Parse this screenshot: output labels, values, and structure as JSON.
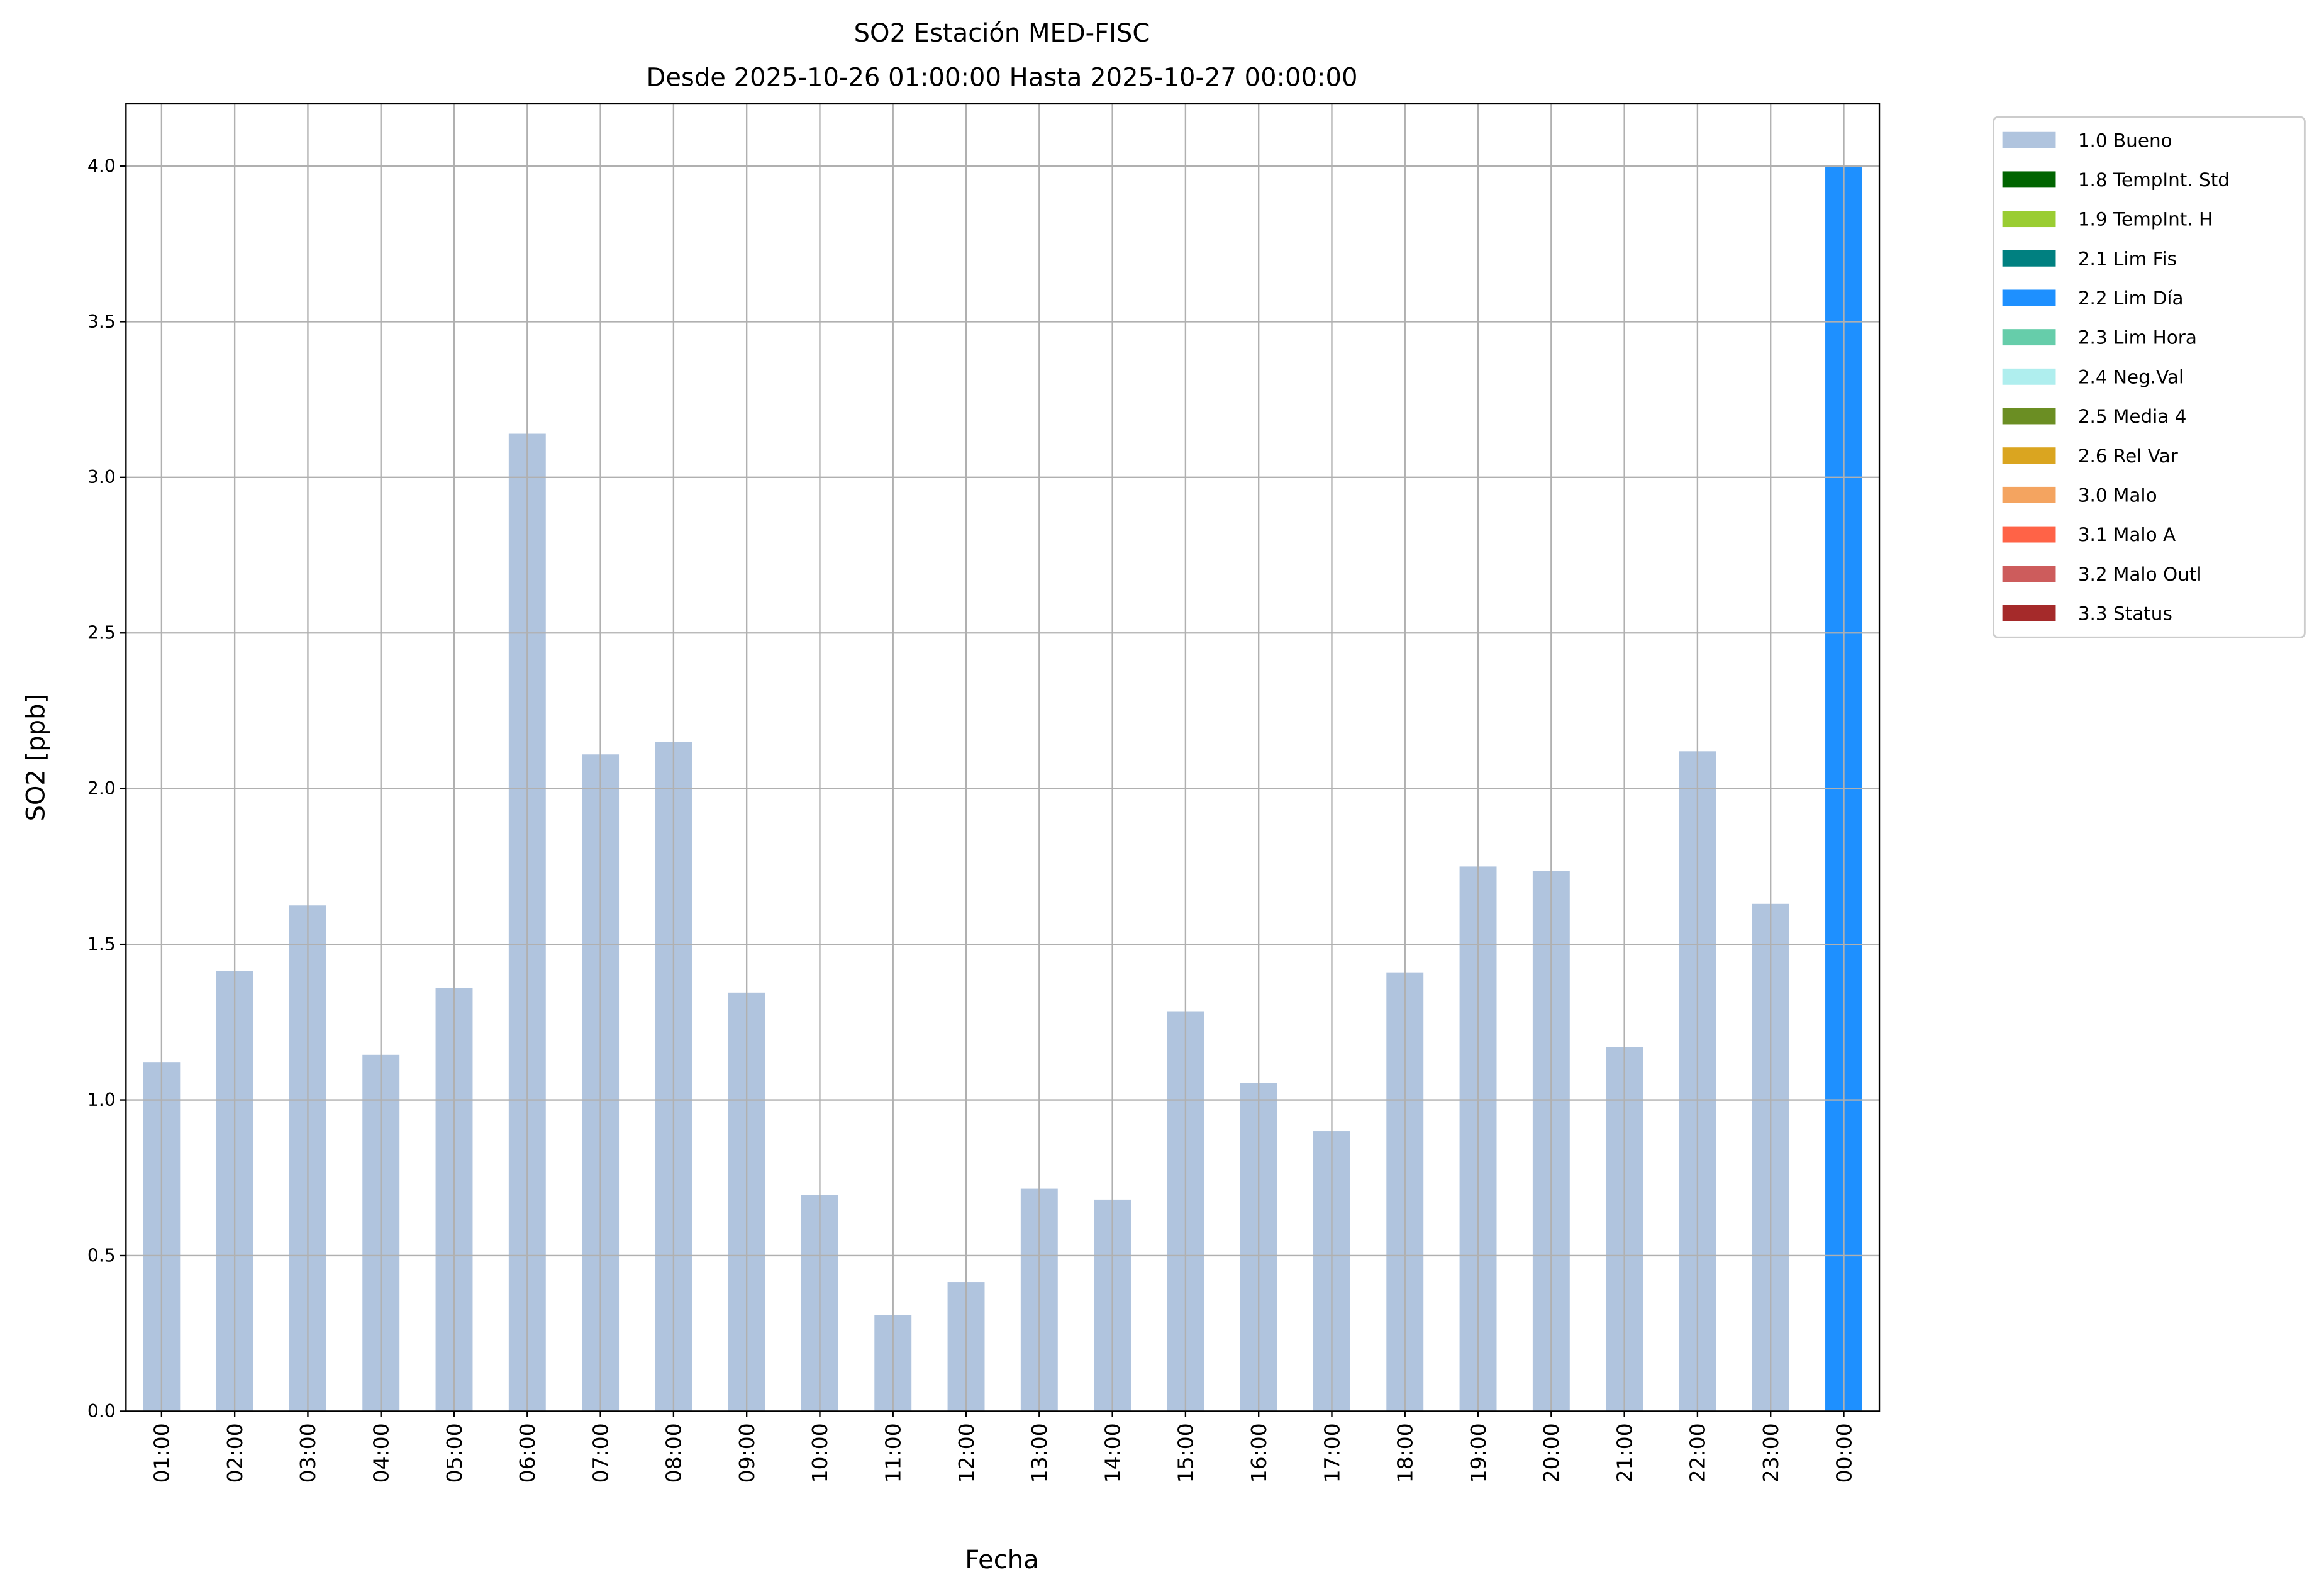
{
  "chart_data": {
    "type": "bar",
    "title": "SO2 Estación MED-FISC",
    "subtitle": "Desde 2025-10-26 01:00:00 Hasta 2025-10-27 00:00:00",
    "xlabel": "Fecha",
    "ylabel": "SO2 [ppb]",
    "ylim": [
      0,
      4.2
    ],
    "yticks": [
      "0.0",
      "0.5",
      "1.0",
      "1.5",
      "2.0",
      "2.5",
      "3.0",
      "3.5",
      "4.0"
    ],
    "grid": true,
    "legend_position": "outside-top-right",
    "categories": [
      "01:00",
      "02:00",
      "03:00",
      "04:00",
      "05:00",
      "06:00",
      "07:00",
      "08:00",
      "09:00",
      "10:00",
      "11:00",
      "12:00",
      "13:00",
      "14:00",
      "15:00",
      "16:00",
      "17:00",
      "18:00",
      "19:00",
      "20:00",
      "21:00",
      "22:00",
      "23:00",
      "00:00"
    ],
    "values": [
      1.12,
      1.415,
      1.625,
      1.145,
      1.36,
      3.14,
      2.11,
      2.15,
      1.345,
      0.695,
      0.31,
      0.415,
      0.715,
      0.68,
      1.285,
      1.055,
      0.9,
      1.41,
      1.75,
      1.735,
      1.17,
      2.12,
      1.63,
      4.0
    ],
    "flags": [
      "1.0 Bueno",
      "1.0 Bueno",
      "1.0 Bueno",
      "1.0 Bueno",
      "1.0 Bueno",
      "1.0 Bueno",
      "1.0 Bueno",
      "1.0 Bueno",
      "1.0 Bueno",
      "1.0 Bueno",
      "1.0 Bueno",
      "1.0 Bueno",
      "1.0 Bueno",
      "1.0 Bueno",
      "1.0 Bueno",
      "1.0 Bueno",
      "1.0 Bueno",
      "1.0 Bueno",
      "1.0 Bueno",
      "1.0 Bueno",
      "1.0 Bueno",
      "1.0 Bueno",
      "1.0 Bueno",
      "2.2 Lim Día"
    ],
    "legend": [
      {
        "name": "1.0 Bueno",
        "color": "#b0c4de"
      },
      {
        "name": "1.8 TempInt. Std",
        "color": "#006400"
      },
      {
        "name": "1.9 TempInt. H",
        "color": "#9acd32"
      },
      {
        "name": "2.1 Lim Fis",
        "color": "#008080"
      },
      {
        "name": "2.2 Lim Día",
        "color": "#1e90ff"
      },
      {
        "name": "2.3 Lim Hora",
        "color": "#66cdaa"
      },
      {
        "name": "2.4 Neg.Val",
        "color": "#afeeee"
      },
      {
        "name": "2.5 Media 4",
        "color": "#6b8e23"
      },
      {
        "name": "2.6 Rel Var",
        "color": "#daa520"
      },
      {
        "name": "3.0 Malo",
        "color": "#f4a460"
      },
      {
        "name": "3.1 Malo A",
        "color": "#ff6347"
      },
      {
        "name": "3.2 Malo Outl",
        "color": "#cd5c5c"
      },
      {
        "name": "3.3 Status",
        "color": "#a52a2a"
      }
    ]
  }
}
